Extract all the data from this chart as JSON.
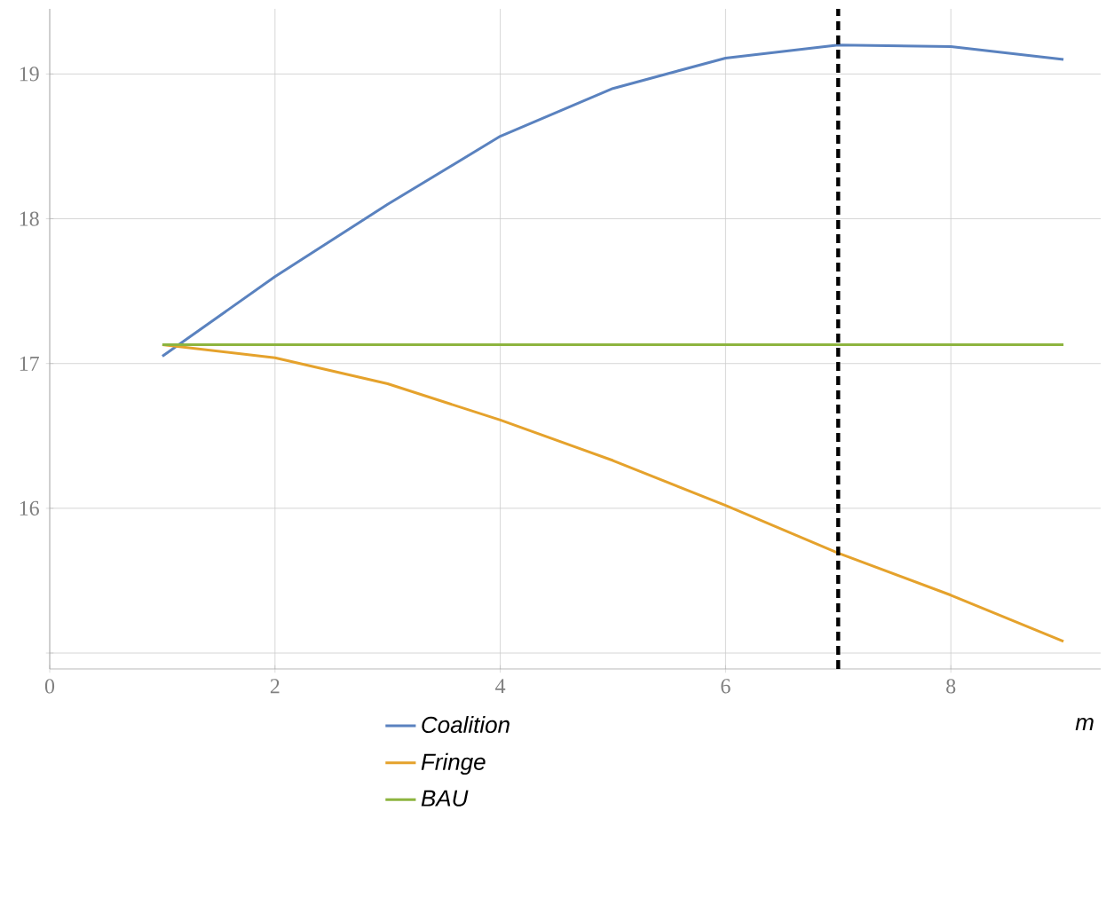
{
  "chart_data": {
    "type": "line",
    "xlabel": "m",
    "x": [
      1,
      2,
      3,
      4,
      5,
      6,
      7,
      8,
      9
    ],
    "series": [
      {
        "name": "Coalition",
        "color": "#5a82bf",
        "values": [
          17.05,
          17.6,
          18.1,
          18.57,
          18.9,
          19.11,
          19.2,
          19.19,
          19.1
        ]
      },
      {
        "name": "Fringe",
        "color": "#e5a22c",
        "values": [
          17.13,
          17.04,
          16.86,
          16.61,
          16.33,
          16.02,
          15.69,
          15.4,
          15.08
        ]
      },
      {
        "name": "BAU",
        "color": "#8db43f",
        "values": [
          17.13,
          17.13,
          17.13,
          17.13,
          17.13,
          17.13,
          17.13,
          17.13,
          17.13
        ]
      }
    ],
    "xlim": [
      0,
      9.33
    ],
    "ylim": [
      14.89,
      19.45
    ],
    "xticks": [
      0,
      2,
      4,
      6,
      8
    ],
    "yticks": [
      {
        "value": 15,
        "label": null
      },
      16,
      17,
      18,
      19
    ],
    "ref_lines": [
      {
        "axis": "x",
        "value": 7,
        "color": "#000000",
        "line_style": "dashed"
      }
    ],
    "grid": true,
    "legend": "bottom",
    "line_style": "solid",
    "marker": "none"
  }
}
